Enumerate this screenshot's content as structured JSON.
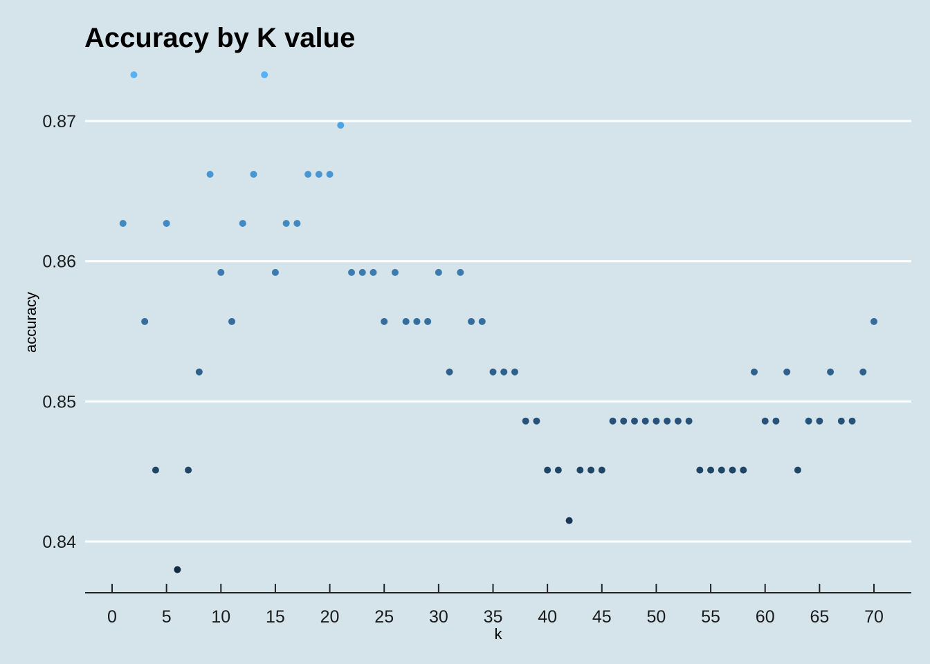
{
  "chart_data": {
    "type": "scatter",
    "title": "Accuracy by K value",
    "xlabel": "k",
    "ylabel": "accuracy",
    "xlim": [
      -2.5,
      73
    ],
    "ylim": [
      0.8365,
      0.8765
    ],
    "x_ticks": [
      0,
      5,
      10,
      15,
      20,
      25,
      30,
      35,
      40,
      45,
      50,
      55,
      60,
      65,
      70
    ],
    "y_ticks": [
      0.84,
      0.85,
      0.86,
      0.87
    ],
    "y_tick_labels": [
      "0.84",
      "0.85",
      "0.86",
      "0.87"
    ],
    "grid": "horizontal major lines only",
    "color_scale": {
      "low": "#132b43",
      "high": "#56b1f7",
      "mapped_to": "accuracy"
    },
    "x": [
      1,
      2,
      3,
      4,
      5,
      6,
      7,
      8,
      9,
      10,
      11,
      12,
      13,
      14,
      15,
      16,
      17,
      18,
      19,
      20,
      21,
      22,
      23,
      24,
      25,
      26,
      27,
      28,
      29,
      30,
      31,
      32,
      33,
      34,
      35,
      36,
      37,
      38,
      39,
      40,
      41,
      42,
      43,
      44,
      45,
      46,
      47,
      48,
      49,
      50,
      51,
      52,
      53,
      54,
      55,
      56,
      57,
      58,
      59,
      60,
      61,
      62,
      63,
      64,
      65,
      66,
      67,
      68,
      69,
      70
    ],
    "y": [
      0.8627,
      0.8733,
      0.8557,
      0.8451,
      0.8627,
      0.838,
      0.8451,
      0.8521,
      0.8662,
      0.8592,
      0.8557,
      0.8627,
      0.8662,
      0.8733,
      0.8592,
      0.8627,
      0.8627,
      0.8662,
      0.8662,
      0.8662,
      0.8697,
      0.8592,
      0.8592,
      0.8592,
      0.8557,
      0.8592,
      0.8557,
      0.8557,
      0.8557,
      0.8592,
      0.8521,
      0.8592,
      0.8557,
      0.8557,
      0.8521,
      0.8521,
      0.8521,
      0.8486,
      0.8486,
      0.8451,
      0.8451,
      0.8415,
      0.8451,
      0.8451,
      0.8451,
      0.8486,
      0.8486,
      0.8486,
      0.8486,
      0.8486,
      0.8486,
      0.8486,
      0.8486,
      0.8451,
      0.8451,
      0.8451,
      0.8451,
      0.8451,
      0.8521,
      0.8486,
      0.8486,
      0.8521,
      0.8451,
      0.8486,
      0.8486,
      0.8521,
      0.8486,
      0.8486,
      0.8521,
      0.8557
    ]
  }
}
